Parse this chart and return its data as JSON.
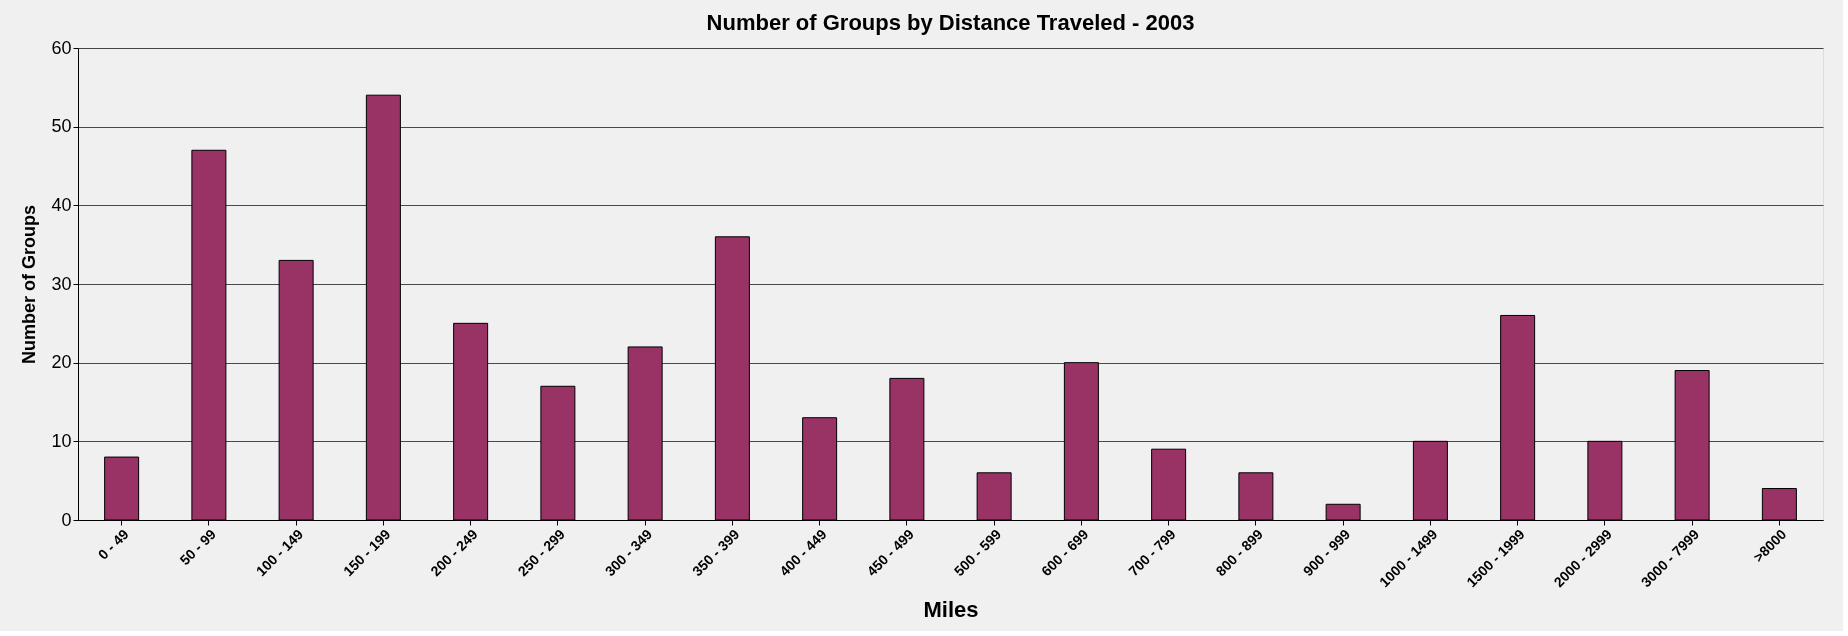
{
  "chart_data": {
    "type": "bar",
    "title": "Number of Groups by Distance Traveled - 2003",
    "xlabel": "Miles",
    "ylabel": "Number of Groups",
    "categories": [
      "0 - 49",
      "50 - 99",
      "100 - 149",
      "150 - 199",
      "200 - 249",
      "250 - 299",
      "300 - 349",
      "350 - 399",
      "400 - 449",
      "450 - 499",
      "500 - 599",
      "600 - 699",
      "700 - 799",
      "800 - 899",
      "900 - 999",
      "1000 - 1499",
      "1500 - 1999",
      "2000 - 2999",
      "3000 - 7999",
      ">8000"
    ],
    "values": [
      8,
      47,
      33,
      54,
      25,
      17,
      22,
      36,
      13,
      18,
      6,
      20,
      9,
      6,
      2,
      10,
      26,
      10,
      19,
      4
    ],
    "color": "#993366",
    "ylim": [
      0,
      60
    ],
    "yticks": [
      0,
      10,
      20,
      30,
      40,
      50,
      60
    ],
    "grid": "y"
  }
}
